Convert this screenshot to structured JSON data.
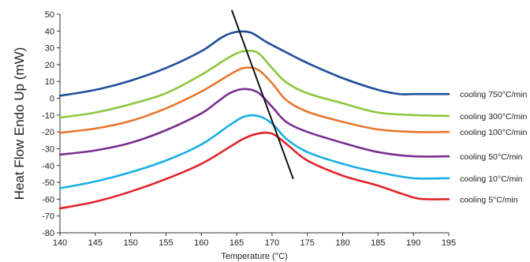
{
  "chart_data": {
    "type": "line",
    "title": "",
    "xlabel": "Temperature (°C)",
    "ylabel": "Heat Flow Endo Up (mW)",
    "xlim": [
      140,
      195
    ],
    "ylim": [
      -80,
      50
    ],
    "x_ticks": [
      140,
      145,
      150,
      155,
      160,
      165,
      170,
      175,
      180,
      185,
      190,
      195
    ],
    "y_ticks": [
      50,
      40,
      30,
      20,
      10,
      0,
      -10,
      -20,
      -30,
      -40,
      -50,
      -60,
      -70,
      -80
    ],
    "grid": false,
    "legend": "right (labels at line ends)",
    "series": [
      {
        "name": "cooling 750°C/min",
        "color": "#1f4e99",
        "points": [
          [
            140,
            1.5
          ],
          [
            145,
            5
          ],
          [
            150,
            10.5
          ],
          [
            155,
            18
          ],
          [
            160,
            28
          ],
          [
            163,
            36.5
          ],
          [
            165,
            39.5
          ],
          [
            167,
            39
          ],
          [
            169,
            34
          ],
          [
            171,
            29.5
          ],
          [
            175,
            21
          ],
          [
            180,
            12
          ],
          [
            185,
            5
          ],
          [
            188,
            2.5
          ],
          [
            190,
            2.5
          ],
          [
            195,
            2.5
          ]
        ]
      },
      {
        "name": "cooling 300°C/min",
        "color": "#8dc63f",
        "points": [
          [
            140,
            -11.5
          ],
          [
            145,
            -8.5
          ],
          [
            150,
            -3.5
          ],
          [
            155,
            3
          ],
          [
            160,
            14
          ],
          [
            164,
            24.5
          ],
          [
            166,
            28
          ],
          [
            168,
            27
          ],
          [
            170,
            18
          ],
          [
            172,
            9.5
          ],
          [
            175,
            3
          ],
          [
            180,
            -3
          ],
          [
            185,
            -8.5
          ],
          [
            190,
            -10
          ],
          [
            195,
            -10.5
          ]
        ]
      },
      {
        "name": "cooling 100°C/min",
        "color": "#e8772e",
        "points": [
          [
            140,
            -20.5
          ],
          [
            145,
            -18
          ],
          [
            150,
            -13.5
          ],
          [
            155,
            -6
          ],
          [
            160,
            4
          ],
          [
            164,
            14
          ],
          [
            166,
            18
          ],
          [
            168,
            17
          ],
          [
            170,
            9
          ],
          [
            172,
            -1
          ],
          [
            175,
            -8
          ],
          [
            180,
            -14
          ],
          [
            185,
            -18.5
          ],
          [
            190,
            -20
          ],
          [
            195,
            -20
          ]
        ]
      },
      {
        "name": "cooling 50°C/min",
        "color": "#7b2f8e",
        "points": [
          [
            140,
            -33.5
          ],
          [
            145,
            -31
          ],
          [
            150,
            -26.5
          ],
          [
            155,
            -19
          ],
          [
            160,
            -9
          ],
          [
            162,
            -3
          ],
          [
            164,
            3
          ],
          [
            166,
            5.5
          ],
          [
            168,
            3.5
          ],
          [
            170,
            -5
          ],
          [
            172,
            -14
          ],
          [
            175,
            -20
          ],
          [
            180,
            -26.5
          ],
          [
            185,
            -32
          ],
          [
            190,
            -34.5
          ],
          [
            195,
            -34.5
          ]
        ]
      },
      {
        "name": "cooling 10°C/min",
        "color": "#19aee6",
        "points": [
          [
            140,
            -53.5
          ],
          [
            145,
            -49.5
          ],
          [
            150,
            -44
          ],
          [
            155,
            -37
          ],
          [
            160,
            -27.5
          ],
          [
            164,
            -16
          ],
          [
            166,
            -11
          ],
          [
            168,
            -10.5
          ],
          [
            170,
            -15
          ],
          [
            172,
            -24
          ],
          [
            175,
            -32
          ],
          [
            180,
            -39
          ],
          [
            185,
            -44
          ],
          [
            190,
            -47.5
          ],
          [
            195,
            -47.5
          ]
        ]
      },
      {
        "name": "cooling 5°C/min",
        "color": "#e0242b",
        "points": [
          [
            140,
            -65.5
          ],
          [
            145,
            -61.5
          ],
          [
            150,
            -55.5
          ],
          [
            155,
            -48
          ],
          [
            160,
            -39
          ],
          [
            164,
            -29
          ],
          [
            166,
            -24
          ],
          [
            168,
            -21
          ],
          [
            170,
            -21
          ],
          [
            172,
            -27
          ],
          [
            175,
            -37
          ],
          [
            180,
            -46
          ],
          [
            185,
            -52
          ],
          [
            190,
            -59
          ],
          [
            192,
            -60
          ],
          [
            195,
            -60
          ]
        ]
      }
    ],
    "annotations": [
      {
        "type": "line",
        "color": "#111111",
        "from": [
          164.3,
          52.5
        ],
        "to": [
          173,
          -48
        ]
      }
    ]
  }
}
